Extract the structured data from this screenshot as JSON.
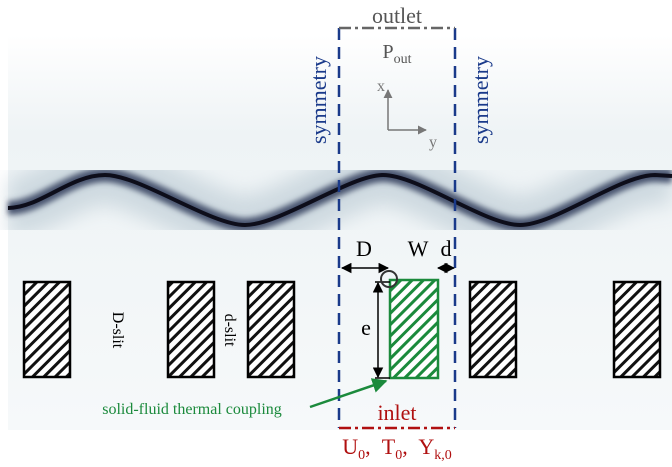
{
  "outlet": {
    "label": "outlet",
    "pressure": {
      "symbol": "P",
      "sub": "out"
    }
  },
  "symmetry": [
    "symmetry",
    "symmetry"
  ],
  "axes": {
    "x": "x",
    "y": "y"
  },
  "dimensions": {
    "D": "D",
    "W": "W",
    "d": "d",
    "e": "e"
  },
  "slits": {
    "D_slit": "D-slit",
    "d_slit": "d-slit"
  },
  "coupling": "solid-fluid thermal coupling",
  "inlet": {
    "label": "inlet",
    "separator": ",",
    "conditions": [
      {
        "symbol": "U",
        "sub": "0"
      },
      {
        "symbol": "T",
        "sub": "0"
      },
      {
        "symbol": "Y",
        "sub": "k,0"
      }
    ]
  }
}
